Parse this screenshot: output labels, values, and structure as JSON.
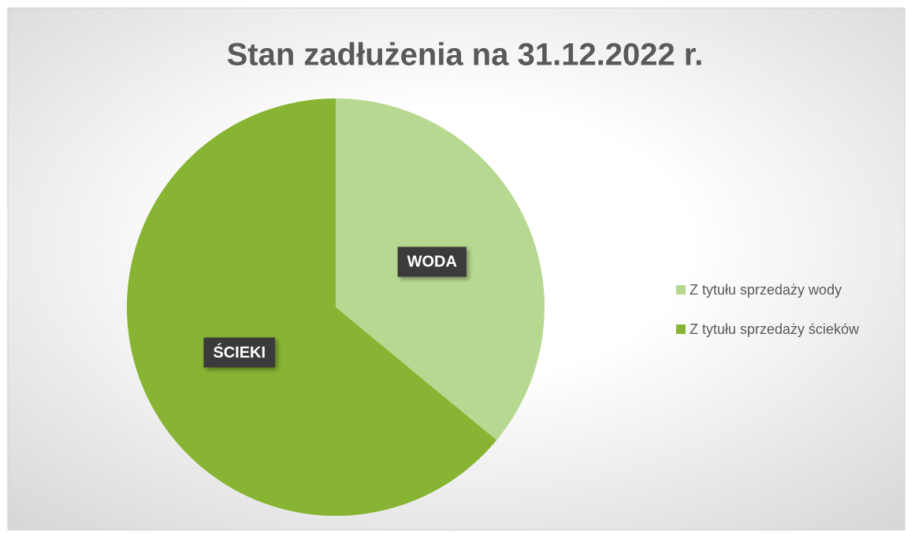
{
  "chart_data": {
    "type": "pie",
    "title": "Stan zadłużenia na 31.12.2022 r.",
    "categories": [
      "Z tytułu sprzedaży wody",
      "Z tytułu sprzedaży ścieków"
    ],
    "values": [
      36,
      64
    ],
    "data_labels": [
      "WODA",
      "ŚCIEKI"
    ],
    "colors": [
      "#b7d890",
      "#87b433"
    ],
    "legend": "right"
  }
}
